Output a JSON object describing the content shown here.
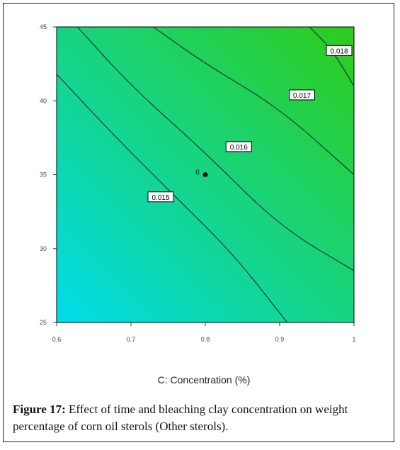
{
  "chart_data": {
    "type": "contour",
    "x": {
      "ticks": [
        "0.6",
        "0.7",
        "0.8",
        "0.9",
        "1"
      ],
      "min": 0.6,
      "max": 1.0
    },
    "y": {
      "ticks": [
        "25",
        "30",
        "35",
        "40",
        "45"
      ],
      "min": 25,
      "max": 45
    },
    "xlabel": "C: Concentration (%)",
    "ylabel": "",
    "colormap": {
      "low": "#00dcea",
      "high": "#2ecc1a"
    },
    "contours": [
      {
        "label": "0.015",
        "points": [
          [
            0.6,
            41.8
          ],
          [
            0.68,
            37.5
          ],
          [
            0.76,
            33.5
          ],
          [
            0.84,
            29.5
          ],
          [
            0.91,
            25
          ]
        ],
        "label_at": [
          0.74,
          33.5
        ]
      },
      {
        "label": "0.016",
        "points": [
          [
            0.628,
            45
          ],
          [
            0.7,
            41.0
          ],
          [
            0.8,
            36.5
          ],
          [
            0.9,
            31.5
          ],
          [
            1.0,
            28.5
          ]
        ],
        "label_at": [
          0.845,
          36.9
        ]
      },
      {
        "label": "0.017",
        "points": [
          [
            0.73,
            45
          ],
          [
            0.8,
            42.5
          ],
          [
            0.9,
            39.5
          ],
          [
            1.0,
            35.0
          ]
        ],
        "label_at": [
          0.93,
          40.4
        ]
      },
      {
        "label": "0.018",
        "points": [
          [
            0.94,
            45
          ],
          [
            0.97,
            43.5
          ],
          [
            1.0,
            41.0
          ]
        ],
        "label_at": [
          0.98,
          43.4
        ]
      }
    ],
    "design_point": {
      "x": 0.8,
      "y": 35.0,
      "label": "6"
    }
  },
  "caption": {
    "label": "Figure 17:",
    "text": " Effect of time and bleaching clay concentration on weight percentage of corn oil sterols (Other sterols)."
  }
}
